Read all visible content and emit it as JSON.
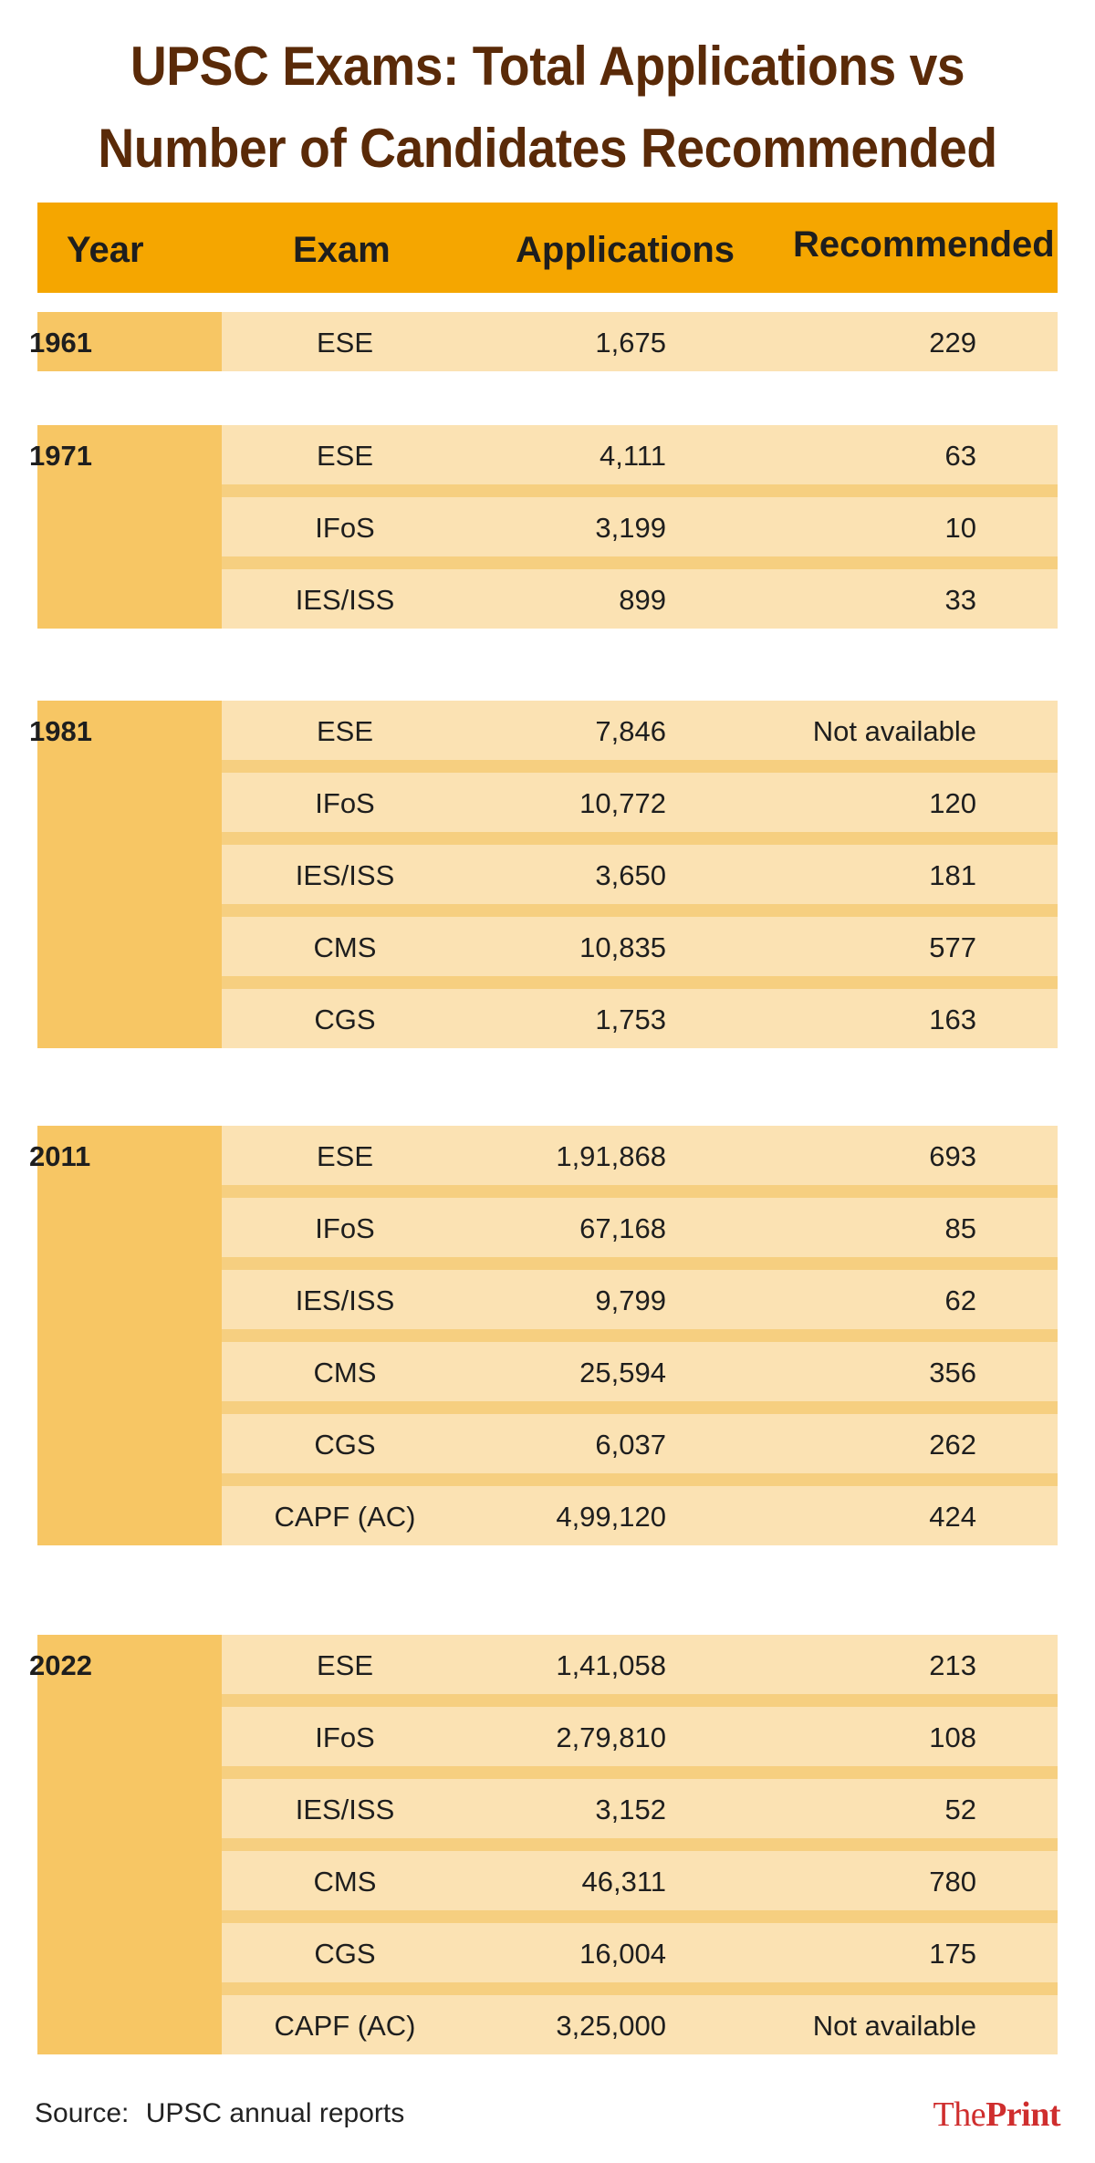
{
  "title_line1": "UPSC Exams: Total Applications vs",
  "title_line2": "Number of Candidates Recommended",
  "headers": {
    "year": "Year",
    "exam": "Exam",
    "applications": "Applications",
    "recommended": "Recommended"
  },
  "chart_data": {
    "type": "table",
    "title": "UPSC Exams: Total Applications vs Number of Candidates Recommended",
    "columns": [
      "Year",
      "Exam",
      "Applications",
      "Recommended"
    ],
    "groups": [
      {
        "year": "1961",
        "rows": [
          {
            "exam": "ESE",
            "applications": "1,675",
            "recommended": "229"
          }
        ]
      },
      {
        "year": "1971",
        "rows": [
          {
            "exam": "ESE",
            "applications": "4,111",
            "recommended": "63"
          },
          {
            "exam": "IFoS",
            "applications": "3,199",
            "recommended": "10"
          },
          {
            "exam": "IES/ISS",
            "applications": "899",
            "recommended": "33"
          }
        ]
      },
      {
        "year": "1981",
        "rows": [
          {
            "exam": "ESE",
            "applications": "7,846",
            "recommended": "Not available"
          },
          {
            "exam": "IFoS",
            "applications": "10,772",
            "recommended": "120"
          },
          {
            "exam": "IES/ISS",
            "applications": "3,650",
            "recommended": "181"
          },
          {
            "exam": "CMS",
            "applications": "10,835",
            "recommended": "577"
          },
          {
            "exam": "CGS",
            "applications": "1,753",
            "recommended": "163"
          }
        ]
      },
      {
        "year": "2011",
        "rows": [
          {
            "exam": "ESE",
            "applications": "1,91,868",
            "recommended": "693"
          },
          {
            "exam": "IFoS",
            "applications": "67,168",
            "recommended": "85"
          },
          {
            "exam": "IES/ISS",
            "applications": "9,799",
            "recommended": "62"
          },
          {
            "exam": "CMS",
            "applications": "25,594",
            "recommended": "356"
          },
          {
            "exam": "CGS",
            "applications": "6,037",
            "recommended": "262"
          },
          {
            "exam": "CAPF (AC)",
            "applications": "4,99,120",
            "recommended": "424"
          }
        ]
      },
      {
        "year": "2022",
        "rows": [
          {
            "exam": "ESE",
            "applications": "1,41,058",
            "recommended": "213"
          },
          {
            "exam": "IFoS",
            "applications": "2,79,810",
            "recommended": "108"
          },
          {
            "exam": "IES/ISS",
            "applications": "3,152",
            "recommended": "52"
          },
          {
            "exam": "CMS",
            "applications": "46,311",
            "recommended": "780"
          },
          {
            "exam": "CGS",
            "applications": "16,004",
            "recommended": "175"
          },
          {
            "exam": "CAPF (AC)",
            "applications": "3,25,000",
            "recommended": "Not available"
          }
        ]
      }
    ]
  },
  "source_label": "Source:",
  "source_text": "UPSC annual reports",
  "logo": {
    "part1": "The",
    "part2": "Print"
  },
  "colors": {
    "title": "#5a2a08",
    "header_bg": "#f5a600",
    "year_bg": "#f7c664",
    "row_bg": "#fbe2b3",
    "row_separator": "#f6cf80",
    "logo": "#cf2e2e"
  }
}
